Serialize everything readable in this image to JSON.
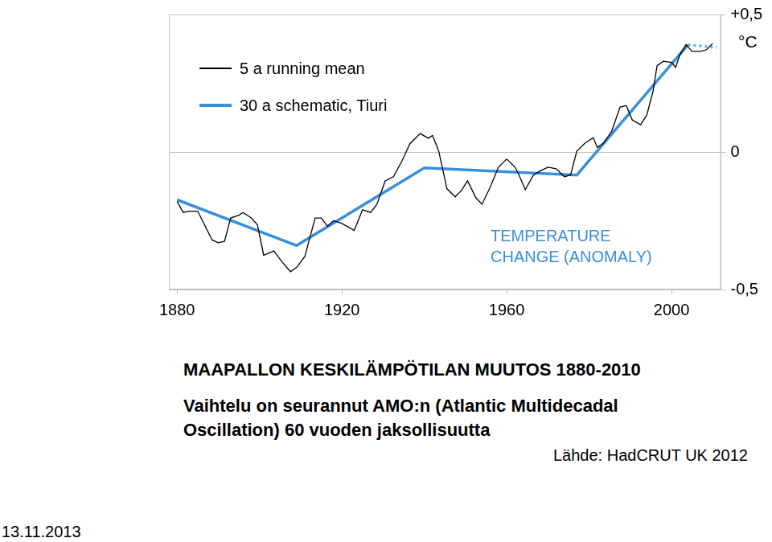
{
  "chart_data": {
    "type": "line",
    "title": "MAAPALLON KESKILÄMPÖTILAN MUUTOS 1880-2010",
    "subtitle": [
      "Vaihtelu on seurannut AMO:n (Atlantic Multidecadal",
      "Oscillation) 60 vuoden jaksollisuutta"
    ],
    "source": "Lähde: HadCRUT UK 2012",
    "date": "13.11.2013",
    "ylabel": "°C",
    "annotation": [
      "TEMPERATURE",
      "CHANGE (ANOMALY)"
    ],
    "xlim": [
      1878,
      2012
    ],
    "xticks": [
      1880,
      1920,
      1960,
      2000
    ],
    "ylim": [
      -0.5,
      0.5
    ],
    "yticks": [
      {
        "value": 0.5,
        "label": "+0,5"
      },
      0,
      {
        "value": -0.5,
        "label": "-0,5"
      }
    ],
    "grid": true,
    "legend": "upper left",
    "series": [
      {
        "name": "5 a running mean",
        "color": "#000000",
        "line_style": "solid",
        "x": [
          1880,
          1881.5,
          1883,
          1885,
          1886.5,
          1888.5,
          1890,
          1891.5,
          1893,
          1895,
          1896,
          1898,
          1899.5,
          1901,
          1903.5,
          1905.5,
          1907.5,
          1909,
          1911,
          1913.5,
          1915,
          1916.5,
          1918,
          1920,
          1923,
          1925,
          1927,
          1928.5,
          1930.5,
          1932.5,
          1934.5,
          1936.5,
          1939,
          1941,
          1942,
          1943.5,
          1945.5,
          1947.5,
          1949,
          1950.5,
          1952.5,
          1954,
          1956,
          1958,
          1960,
          1962,
          1963,
          1964.5,
          1966.5,
          1968,
          1970,
          1972,
          1974,
          1975.5,
          1977,
          1979,
          1981,
          1982,
          1983.5,
          1985.5,
          1987.5,
          1989,
          1990.5,
          1992.5,
          1994,
          1995.5,
          1996.5,
          1998,
          2000,
          2001,
          2002,
          2003.5,
          2005,
          2007,
          2008.5,
          2010
        ],
        "values": [
          -0.18,
          -0.22,
          -0.215,
          -0.215,
          -0.26,
          -0.32,
          -0.33,
          -0.325,
          -0.24,
          -0.23,
          -0.22,
          -0.24,
          -0.265,
          -0.375,
          -0.36,
          -0.4,
          -0.435,
          -0.42,
          -0.38,
          -0.24,
          -0.24,
          -0.27,
          -0.25,
          -0.26,
          -0.285,
          -0.21,
          -0.22,
          -0.19,
          -0.105,
          -0.09,
          -0.035,
          0.03,
          0.067,
          0.05,
          0.06,
          0.003,
          -0.134,
          -0.163,
          -0.14,
          -0.105,
          -0.166,
          -0.19,
          -0.128,
          -0.055,
          -0.026,
          -0.055,
          -0.084,
          -0.137,
          -0.084,
          -0.07,
          -0.055,
          -0.061,
          -0.09,
          -0.084,
          0.003,
          0.032,
          0.052,
          0.017,
          0.032,
          0.076,
          0.163,
          0.169,
          0.116,
          0.099,
          0.134,
          0.22,
          0.314,
          0.33,
          0.326,
          0.308,
          0.352,
          0.39,
          0.366,
          0.366,
          0.372,
          0.395
        ]
      },
      {
        "name": "30 a schematic, Tiuri",
        "color": "#3a8fdb",
        "line_style": "solid",
        "x": [
          1880,
          1909,
          1940,
          1977,
          2004
        ],
        "values": [
          -0.174,
          -0.34,
          -0.058,
          -0.084,
          0.39
        ]
      },
      {
        "color": "#6aaee8",
        "line_style": "dotted",
        "x": [
          2004,
          2011
        ],
        "values": [
          0.39,
          0.38
        ]
      }
    ]
  }
}
